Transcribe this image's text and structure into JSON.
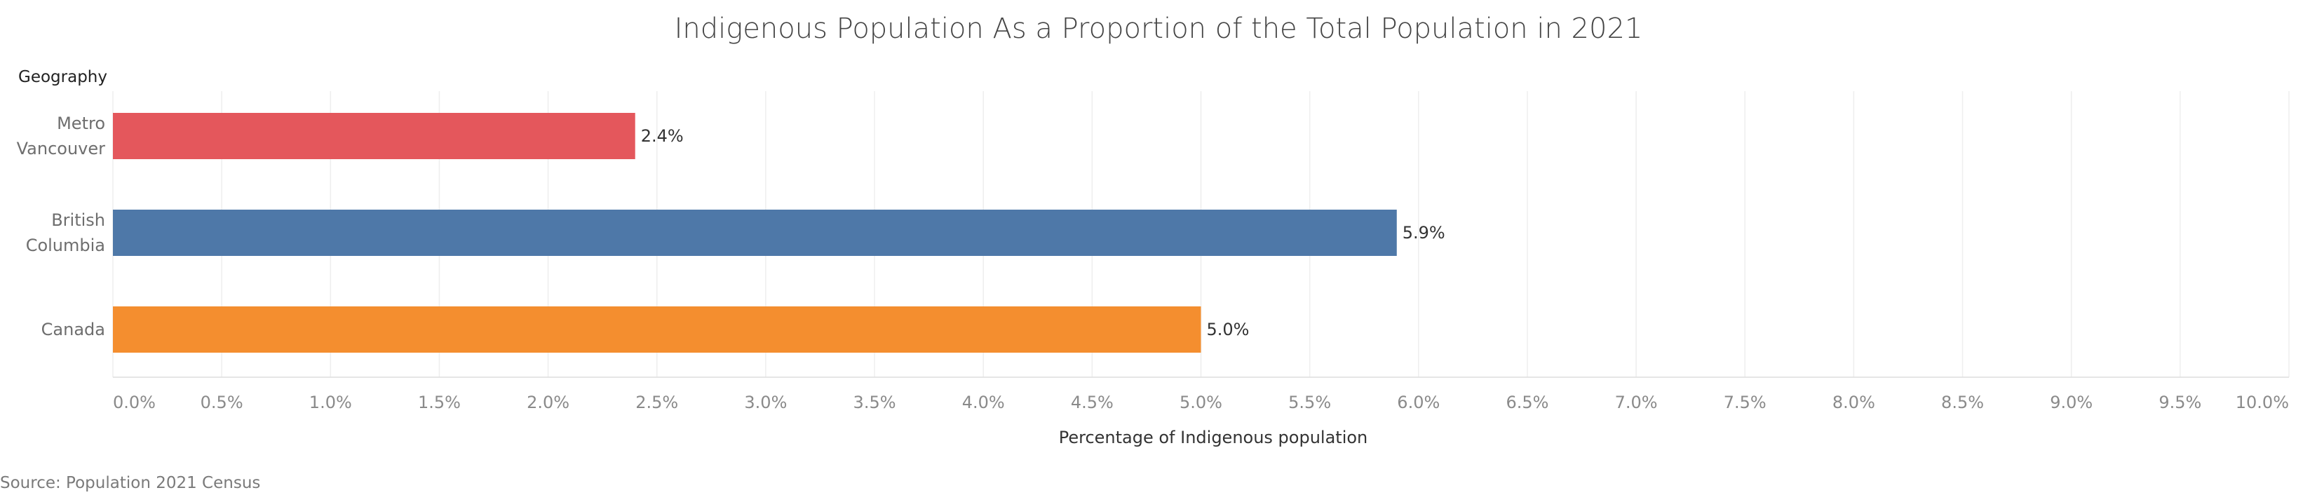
{
  "chart_data": {
    "type": "bar",
    "orientation": "horizontal",
    "title": "Indigenous Population As a Proportion of the Total Population in 2021",
    "category_header": "Geography",
    "xlabel": "Percentage of Indigenous population",
    "ylabel": "",
    "categories": [
      [
        "Metro",
        "Vancouver"
      ],
      [
        "British",
        "Columbia"
      ],
      [
        "Canada"
      ]
    ],
    "values": [
      2.4,
      5.9,
      5.0
    ],
    "data_labels": [
      "2.4%",
      "5.9%",
      "5.0%"
    ],
    "colors": [
      "#e4575c",
      "#4e78a8",
      "#f48e2f"
    ],
    "xlim": [
      0,
      10
    ],
    "ticks": [
      0.0,
      0.5,
      1.0,
      1.5,
      2.0,
      2.5,
      3.0,
      3.5,
      4.0,
      4.5,
      5.0,
      5.5,
      6.0,
      6.5,
      7.0,
      7.5,
      8.0,
      8.5,
      9.0,
      9.5,
      10.0
    ],
    "tick_labels": [
      "0.0%",
      "0.5%",
      "1.0%",
      "1.5%",
      "2.0%",
      "2.5%",
      "3.0%",
      "3.5%",
      "4.0%",
      "4.5%",
      "5.0%",
      "5.5%",
      "6.0%",
      "6.5%",
      "7.0%",
      "7.5%",
      "8.0%",
      "8.5%",
      "9.0%",
      "9.5%",
      "10.0%"
    ],
    "grid": true,
    "legend": "none"
  },
  "source": "Source: Population 2021 Census"
}
